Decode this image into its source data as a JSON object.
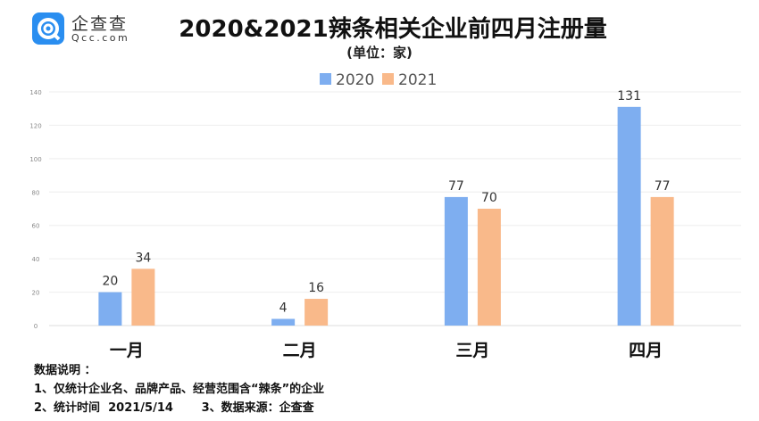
{
  "logo": {
    "name": "企查查",
    "sub": "Qcc.com"
  },
  "title": "2020&2021辣条相关企业前四月注册量",
  "unit": "(单位：家)",
  "notes": [
    "数据说明 ：",
    "1、仅统计企业名、品牌产品、经营范围含“辣条”的企业",
    "2、统计时间  2021/5/14       3、数据来源：企查查"
  ],
  "chart_data": {
    "type": "bar",
    "title": "2020&2021辣条相关企业前四月注册量",
    "categories": [
      "一月",
      "二月",
      "三月",
      "四月"
    ],
    "series": [
      {
        "name": "2020",
        "values": [
          20,
          4,
          77,
          131
        ],
        "color": "#7eaef0"
      },
      {
        "name": "2021",
        "values": [
          34,
          16,
          70,
          77
        ],
        "color": "#f9b98a"
      }
    ],
    "ylim": [
      0,
      140
    ],
    "yticks": [
      0,
      20,
      40,
      60,
      80,
      100,
      120,
      140
    ],
    "legend": "top-center",
    "grid": true
  }
}
